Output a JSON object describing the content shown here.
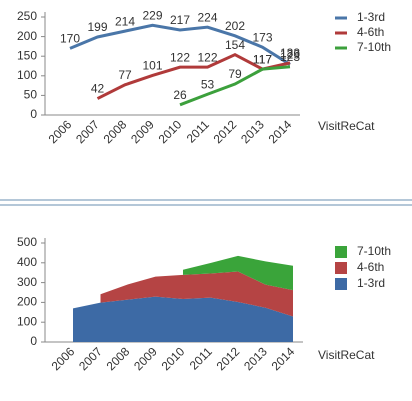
{
  "chart_data": [
    {
      "type": "line",
      "x_label": "VisitReCat",
      "categories": [
        "2006",
        "2007",
        "2008",
        "2009",
        "2010",
        "2011",
        "2012",
        "2013",
        "2014"
      ],
      "series": [
        {
          "name": "1-3rd",
          "color": "#4a76a8",
          "values": [
            170,
            199,
            214,
            229,
            217,
            224,
            202,
            173,
            129
          ]
        },
        {
          "name": "4-6th",
          "color": "#b03a3a",
          "values": [
            null,
            42,
            77,
            101,
            122,
            122,
            154,
            117,
            133
          ]
        },
        {
          "name": "7-10th",
          "color": "#3ca03c",
          "values": [
            null,
            null,
            null,
            null,
            26,
            53,
            79,
            117,
            123
          ]
        }
      ],
      "ylim": [
        0,
        250
      ],
      "yticks": [
        0,
        50,
        100,
        150,
        200,
        250
      ]
    },
    {
      "type": "stacked_area",
      "x_label": "VisitReCat",
      "categories": [
        "2006",
        "2007",
        "2008",
        "2009",
        "2010",
        "2011",
        "2012",
        "2013",
        "2014"
      ],
      "series": [
        {
          "name": "1-3rd",
          "color": "#3d6aa5",
          "values": [
            170,
            199,
            214,
            229,
            217,
            224,
            202,
            173,
            129
          ]
        },
        {
          "name": "4-6th",
          "color": "#b54444",
          "values": [
            null,
            42,
            77,
            101,
            122,
            122,
            154,
            117,
            133
          ]
        },
        {
          "name": "7-10th",
          "color": "#3aa43a",
          "values": [
            null,
            null,
            null,
            null,
            26,
            53,
            79,
            117,
            123
          ]
        }
      ],
      "ylim": [
        0,
        500
      ],
      "yticks": [
        0,
        100,
        200,
        300,
        400,
        500
      ]
    }
  ]
}
